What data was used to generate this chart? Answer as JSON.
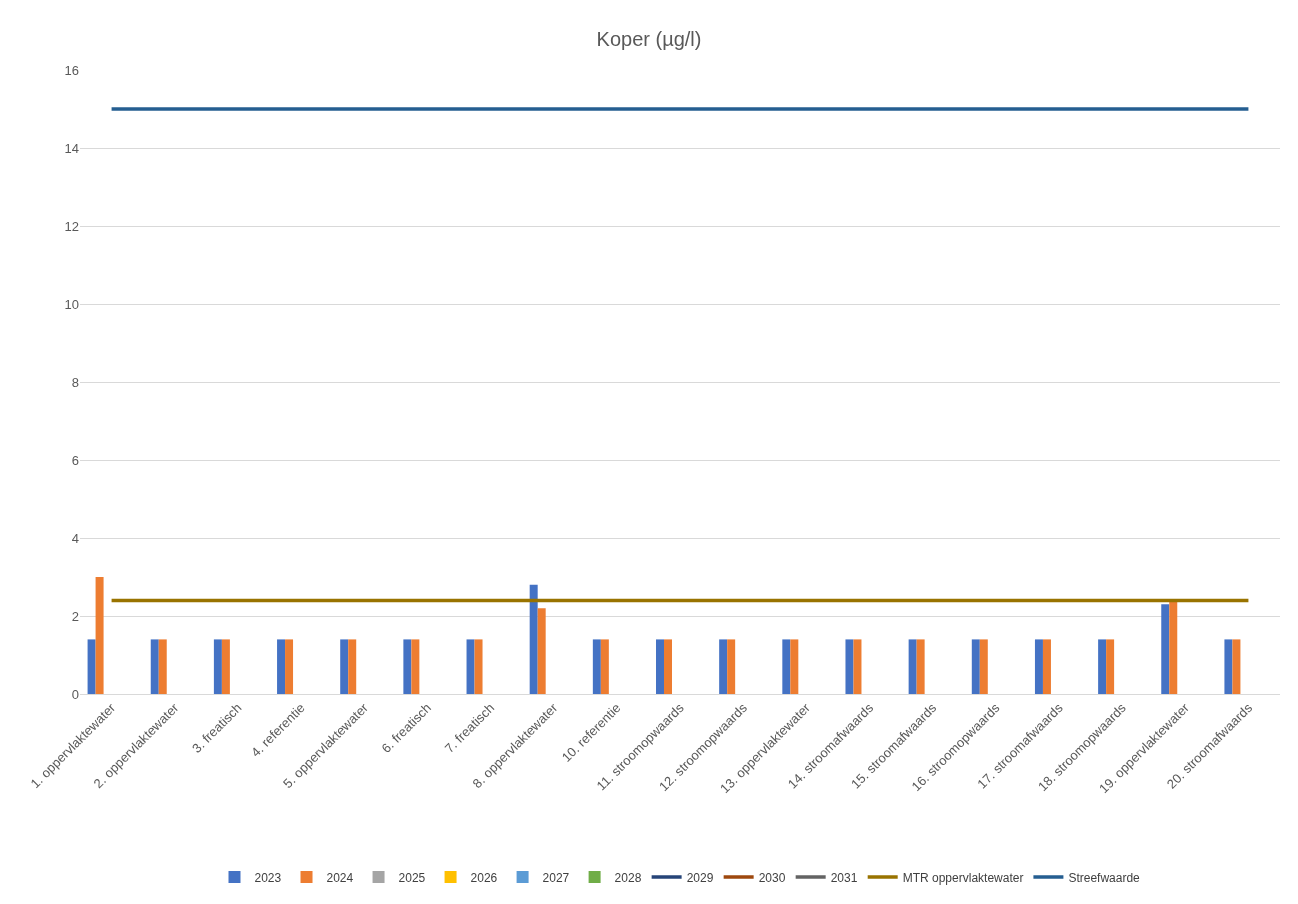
{
  "chart_data": {
    "type": "bar",
    "title": "Koper (µg/l)",
    "categories": [
      "1. oppervlaktewater",
      "2. oppervlaktewater",
      "3. freatisch",
      "4. referentie",
      "5. oppervlaktewater",
      "6. freatisch",
      "7. freatisch",
      "8. oppervlaktewater",
      "10. referentie",
      "11. stroomopwaards",
      "12. stroomopwaards",
      "13. oppervlaktewater",
      "14. stroomafwaards",
      "15. stroomafwaards",
      "16. stroomopwaards",
      "17. stroomafwaards",
      "18. stroomopwaards",
      "19. oppervlaktewater",
      "20. stroomafwaards"
    ],
    "series": [
      {
        "name": "2023",
        "color": "#4472c4",
        "values": [
          1.4,
          1.4,
          1.4,
          1.4,
          1.4,
          1.4,
          1.4,
          2.8,
          1.4,
          1.4,
          1.4,
          1.4,
          1.4,
          1.4,
          1.4,
          1.4,
          1.4,
          2.3,
          1.4
        ]
      },
      {
        "name": "2024",
        "color": "#ed7d31",
        "values": [
          3.0,
          1.4,
          1.4,
          1.4,
          1.4,
          1.4,
          1.4,
          2.2,
          1.4,
          1.4,
          1.4,
          1.4,
          1.4,
          1.4,
          1.4,
          1.4,
          1.4,
          2.4,
          1.4
        ]
      },
      {
        "name": "2025",
        "color": "#a5a5a5",
        "values": [
          null,
          null,
          null,
          null,
          null,
          null,
          null,
          null,
          null,
          null,
          null,
          null,
          null,
          null,
          null,
          null,
          null,
          null,
          null
        ]
      },
      {
        "name": "2026",
        "color": "#ffc000",
        "values": [
          null,
          null,
          null,
          null,
          null,
          null,
          null,
          null,
          null,
          null,
          null,
          null,
          null,
          null,
          null,
          null,
          null,
          null,
          null
        ]
      },
      {
        "name": "2027",
        "color": "#5b9bd5",
        "values": [
          null,
          null,
          null,
          null,
          null,
          null,
          null,
          null,
          null,
          null,
          null,
          null,
          null,
          null,
          null,
          null,
          null,
          null,
          null
        ]
      },
      {
        "name": "2028",
        "color": "#70ad47",
        "values": [
          null,
          null,
          null,
          null,
          null,
          null,
          null,
          null,
          null,
          null,
          null,
          null,
          null,
          null,
          null,
          null,
          null,
          null,
          null
        ]
      },
      {
        "name": "2029",
        "type": "line",
        "color": "#264478",
        "values": [
          null,
          null,
          null,
          null,
          null,
          null,
          null,
          null,
          null,
          null,
          null,
          null,
          null,
          null,
          null,
          null,
          null,
          null,
          null
        ]
      },
      {
        "name": "2030",
        "type": "line",
        "color": "#9e480e",
        "values": [
          null,
          null,
          null,
          null,
          null,
          null,
          null,
          null,
          null,
          null,
          null,
          null,
          null,
          null,
          null,
          null,
          null,
          null,
          null
        ]
      },
      {
        "name": "2031",
        "type": "line",
        "color": "#636363",
        "values": [
          null,
          null,
          null,
          null,
          null,
          null,
          null,
          null,
          null,
          null,
          null,
          null,
          null,
          null,
          null,
          null,
          null,
          null,
          null
        ]
      },
      {
        "name": "MTR oppervlaktewater",
        "type": "line",
        "color": "#997300",
        "values": [
          2.4,
          2.4,
          2.4,
          2.4,
          2.4,
          2.4,
          2.4,
          2.4,
          2.4,
          2.4,
          2.4,
          2.4,
          2.4,
          2.4,
          2.4,
          2.4,
          2.4,
          2.4,
          2.4
        ]
      },
      {
        "name": "Streefwaarde",
        "type": "line",
        "color": "#255e91",
        "values": [
          15,
          15,
          15,
          15,
          15,
          15,
          15,
          15,
          15,
          15,
          15,
          15,
          15,
          15,
          15,
          15,
          15,
          15,
          15
        ]
      }
    ],
    "ylim": [
      0,
      16
    ],
    "yticks": [
      0,
      2,
      4,
      6,
      8,
      10,
      12,
      14,
      16
    ],
    "grid": "y",
    "legend": "bottom",
    "marker": "none",
    "line_style": "solid"
  }
}
